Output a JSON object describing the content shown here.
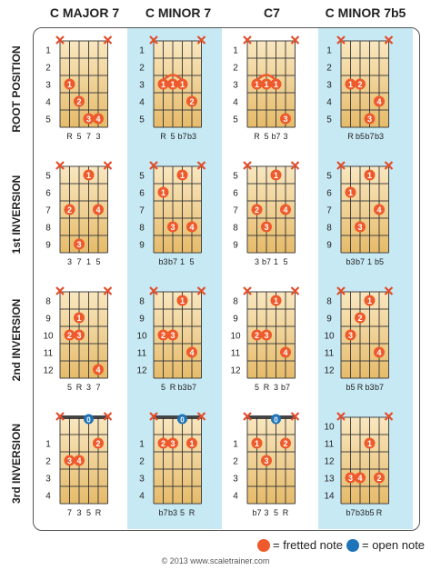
{
  "columns": [
    "C MAJOR 7",
    "C MINOR 7",
    "C7",
    "C MINOR 7b5"
  ],
  "rows": [
    "ROOT POSITION",
    "1st INVERSION",
    "2nd INVERSION",
    "3rd INVERSION"
  ],
  "colors": {
    "fretted": "#ee5a2b",
    "open": "#1e74b9",
    "mute": "#e34d2a",
    "stripe": "#c7e9f4",
    "wood_light": "#f7e2b4",
    "wood_dark": "#e8bf72"
  },
  "legend": {
    "fretted": "= fretted note",
    "open": "= open note"
  },
  "copyright": "© 2013 www.scaletrainer.com",
  "diagrams": [
    [
      {
        "name": "c-major-7-root-position",
        "frets": [
          "1",
          "2",
          "3",
          "4",
          "5"
        ],
        "marks": [
          "x",
          "",
          "",
          "",
          "",
          "x"
        ],
        "notes": [
          {
            "s": 1,
            "f": 3,
            "l": "1"
          },
          {
            "s": 2,
            "f": 4,
            "l": "2"
          },
          {
            "s": 3,
            "f": 5,
            "l": "3"
          },
          {
            "s": 4,
            "f": 5,
            "l": "4"
          }
        ],
        "intervals": [
          "R",
          "5",
          "7",
          "3"
        ]
      },
      {
        "name": "c-minor-7-root-position",
        "frets": [
          "1",
          "2",
          "3",
          "4",
          "5"
        ],
        "marks": [
          "x",
          "",
          "",
          "",
          "",
          "x"
        ],
        "notes": [
          {
            "s": 1,
            "f": 3,
            "l": "1"
          },
          {
            "s": 2,
            "f": 3,
            "l": "1"
          },
          {
            "s": 3,
            "f": 3,
            "l": "1"
          },
          {
            "s": 4,
            "f": 4,
            "l": "2"
          }
        ],
        "barre": {
          "from": 1,
          "to": 3,
          "f": 3
        },
        "intervals": [
          "R",
          "5",
          "b7",
          "b3"
        ]
      },
      {
        "name": "c7-root-position",
        "frets": [
          "1",
          "2",
          "3",
          "4",
          "5"
        ],
        "marks": [
          "x",
          "",
          "",
          "",
          "",
          "x"
        ],
        "notes": [
          {
            "s": 1,
            "f": 3,
            "l": "1"
          },
          {
            "s": 2,
            "f": 3,
            "l": "1"
          },
          {
            "s": 3,
            "f": 3,
            "l": "1"
          },
          {
            "s": 4,
            "f": 5,
            "l": "3"
          }
        ],
        "barre": {
          "from": 1,
          "to": 3,
          "f": 3
        },
        "intervals": [
          "R",
          "5",
          "b7",
          "3"
        ]
      },
      {
        "name": "c-minor-7b5-root-position",
        "frets": [
          "1",
          "2",
          "3",
          "4",
          "5"
        ],
        "marks": [
          "x",
          "",
          "",
          "",
          "",
          "x"
        ],
        "notes": [
          {
            "s": 1,
            "f": 3,
            "l": "1"
          },
          {
            "s": 2,
            "f": 3,
            "l": "2"
          },
          {
            "s": 3,
            "f": 5,
            "l": "3"
          },
          {
            "s": 4,
            "f": 4,
            "l": "4"
          }
        ],
        "intervals": [
          "R",
          "b5",
          "b7",
          "b3"
        ]
      }
    ],
    [
      {
        "name": "c-major-7-1st-inversion",
        "frets": [
          "5",
          "6",
          "7",
          "8",
          "9"
        ],
        "marks": [
          "x",
          "",
          "",
          "",
          "",
          "x"
        ],
        "notes": [
          {
            "s": 3,
            "f": 5,
            "l": "1"
          },
          {
            "s": 1,
            "f": 7,
            "l": "2"
          },
          {
            "s": 4,
            "f": 7,
            "l": "4"
          },
          {
            "s": 2,
            "f": 9,
            "l": "3"
          }
        ],
        "intervals": [
          "3",
          "7",
          "1",
          "5"
        ]
      },
      {
        "name": "c-minor-7-1st-inversion",
        "frets": [
          "5",
          "6",
          "7",
          "8",
          "9"
        ],
        "marks": [
          "x",
          "",
          "",
          "",
          "",
          "x"
        ],
        "notes": [
          {
            "s": 3,
            "f": 5,
            "l": "1"
          },
          {
            "s": 1,
            "f": 6,
            "l": "1"
          },
          {
            "s": 2,
            "f": 8,
            "l": "3"
          },
          {
            "s": 4,
            "f": 8,
            "l": "4"
          }
        ],
        "intervals": [
          "b3",
          "b7",
          "1",
          "5"
        ]
      },
      {
        "name": "c7-1st-inversion",
        "frets": [
          "5",
          "6",
          "7",
          "8",
          "9"
        ],
        "marks": [
          "x",
          "",
          "",
          "",
          "",
          "x"
        ],
        "notes": [
          {
            "s": 3,
            "f": 5,
            "l": "1"
          },
          {
            "s": 1,
            "f": 7,
            "l": "2"
          },
          {
            "s": 2,
            "f": 8,
            "l": "3"
          },
          {
            "s": 4,
            "f": 7,
            "l": "4"
          }
        ],
        "intervals": [
          "3",
          "b7",
          "1",
          "5"
        ]
      },
      {
        "name": "c-minor-7b5-1st-inversion",
        "frets": [
          "5",
          "6",
          "7",
          "8",
          "9"
        ],
        "marks": [
          "x",
          "",
          "",
          "",
          "",
          "x"
        ],
        "notes": [
          {
            "s": 3,
            "f": 5,
            "l": "1"
          },
          {
            "s": 1,
            "f": 6,
            "l": "1"
          },
          {
            "s": 4,
            "f": 7,
            "l": "4"
          },
          {
            "s": 2,
            "f": 8,
            "l": "3"
          }
        ],
        "intervals": [
          "b3",
          "b7",
          "1",
          "b5"
        ]
      }
    ],
    [
      {
        "name": "c-major-7-2nd-inversion",
        "frets": [
          "8",
          "9",
          "10",
          "11",
          "12"
        ],
        "marks": [
          "x",
          "",
          "",
          "",
          "",
          "x"
        ],
        "notes": [
          {
            "s": 2,
            "f": 9,
            "l": "1"
          },
          {
            "s": 1,
            "f": 10,
            "l": "2"
          },
          {
            "s": 2,
            "f": 10,
            "l": "3"
          },
          {
            "s": 4,
            "f": 12,
            "l": "4"
          }
        ],
        "intervals": [
          "5",
          "R",
          "3",
          "7"
        ]
      },
      {
        "name": "c-minor-7-2nd-inversion",
        "frets": [
          "8",
          "9",
          "10",
          "11",
          "12"
        ],
        "marks": [
          "x",
          "",
          "",
          "",
          "",
          "x"
        ],
        "notes": [
          {
            "s": 3,
            "f": 8,
            "l": "1"
          },
          {
            "s": 1,
            "f": 10,
            "l": "2"
          },
          {
            "s": 2,
            "f": 10,
            "l": "3"
          },
          {
            "s": 4,
            "f": 11,
            "l": "4"
          }
        ],
        "intervals": [
          "5",
          "R",
          "b3",
          "b7"
        ]
      },
      {
        "name": "c7-2nd-inversion",
        "frets": [
          "8",
          "9",
          "10",
          "11",
          "12"
        ],
        "marks": [
          "x",
          "",
          "",
          "",
          "",
          "x"
        ],
        "notes": [
          {
            "s": 3,
            "f": 8,
            "l": "1"
          },
          {
            "s": 1,
            "f": 10,
            "l": "2"
          },
          {
            "s": 2,
            "f": 10,
            "l": "3"
          },
          {
            "s": 4,
            "f": 11,
            "l": "4"
          }
        ],
        "intervals": [
          "5",
          "R",
          "3",
          "b7"
        ]
      },
      {
        "name": "c-minor-7b5-2nd-inversion",
        "frets": [
          "8",
          "9",
          "10",
          "11",
          "12"
        ],
        "marks": [
          "x",
          "",
          "",
          "",
          "",
          "x"
        ],
        "notes": [
          {
            "s": 3,
            "f": 8,
            "l": "1"
          },
          {
            "s": 2,
            "f": 9,
            "l": "2"
          },
          {
            "s": 1,
            "f": 10,
            "l": "3"
          },
          {
            "s": 4,
            "f": 11,
            "l": "4"
          }
        ],
        "intervals": [
          "b5",
          "R",
          "b3",
          "b7"
        ]
      }
    ],
    [
      {
        "name": "c-major-7-3rd-inversion",
        "frets": [
          "",
          "1",
          "2",
          "3",
          "4"
        ],
        "marks": [
          "x",
          "",
          "",
          "o",
          "",
          "x"
        ],
        "notes": [
          {
            "s": 4,
            "f": 1,
            "l": "2"
          },
          {
            "s": 1,
            "f": 2,
            "l": "3"
          },
          {
            "s": 2,
            "f": 2,
            "l": "4"
          }
        ],
        "intervals": [
          "7",
          "3",
          "5",
          "R"
        ]
      },
      {
        "name": "c-minor-7-3rd-inversion",
        "frets": [
          "",
          "1",
          "2",
          "3",
          "4"
        ],
        "marks": [
          "x",
          "",
          "",
          "o",
          "",
          "x"
        ],
        "notes": [
          {
            "s": 1,
            "f": 1,
            "l": "2"
          },
          {
            "s": 2,
            "f": 1,
            "l": "3"
          },
          {
            "s": 4,
            "f": 1,
            "l": "1"
          }
        ],
        "intervals": [
          "b7",
          "b3",
          "5",
          "R"
        ]
      },
      {
        "name": "c7-3rd-inversion",
        "frets": [
          "",
          "1",
          "2",
          "3",
          "4"
        ],
        "marks": [
          "x",
          "",
          "",
          "o",
          "",
          "x"
        ],
        "notes": [
          {
            "s": 1,
            "f": 1,
            "l": "1"
          },
          {
            "s": 4,
            "f": 1,
            "l": "2"
          },
          {
            "s": 2,
            "f": 2,
            "l": "3"
          }
        ],
        "intervals": [
          "b7",
          "3",
          "5",
          "R"
        ]
      },
      {
        "name": "c-minor-7b5-3rd-inversion",
        "frets": [
          "10",
          "11",
          "12",
          "13",
          "14"
        ],
        "marks": [
          "x",
          "",
          "",
          "",
          "",
          "x"
        ],
        "notes": [
          {
            "s": 3,
            "f": 11,
            "l": "1"
          },
          {
            "s": 1,
            "f": 13,
            "l": "3"
          },
          {
            "s": 2,
            "f": 13,
            "l": "4"
          },
          {
            "s": 4,
            "f": 13,
            "l": "2"
          }
        ],
        "intervals": [
          "b7",
          "b3",
          "b5",
          "R"
        ]
      }
    ]
  ]
}
